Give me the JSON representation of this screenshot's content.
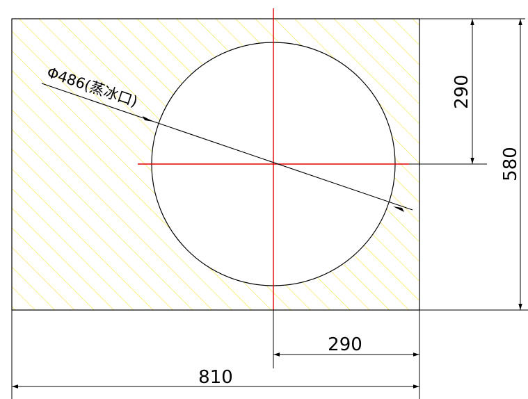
{
  "labels": {
    "diameter": "Φ486(蒸冰口)",
    "vertical_half": "290",
    "vertical_total": "580",
    "horizontal_half": "290",
    "horizontal_total": "810"
  },
  "colors": {
    "hatch": "#f0e63c",
    "centerline": "#e00000",
    "line": "#000000"
  }
}
